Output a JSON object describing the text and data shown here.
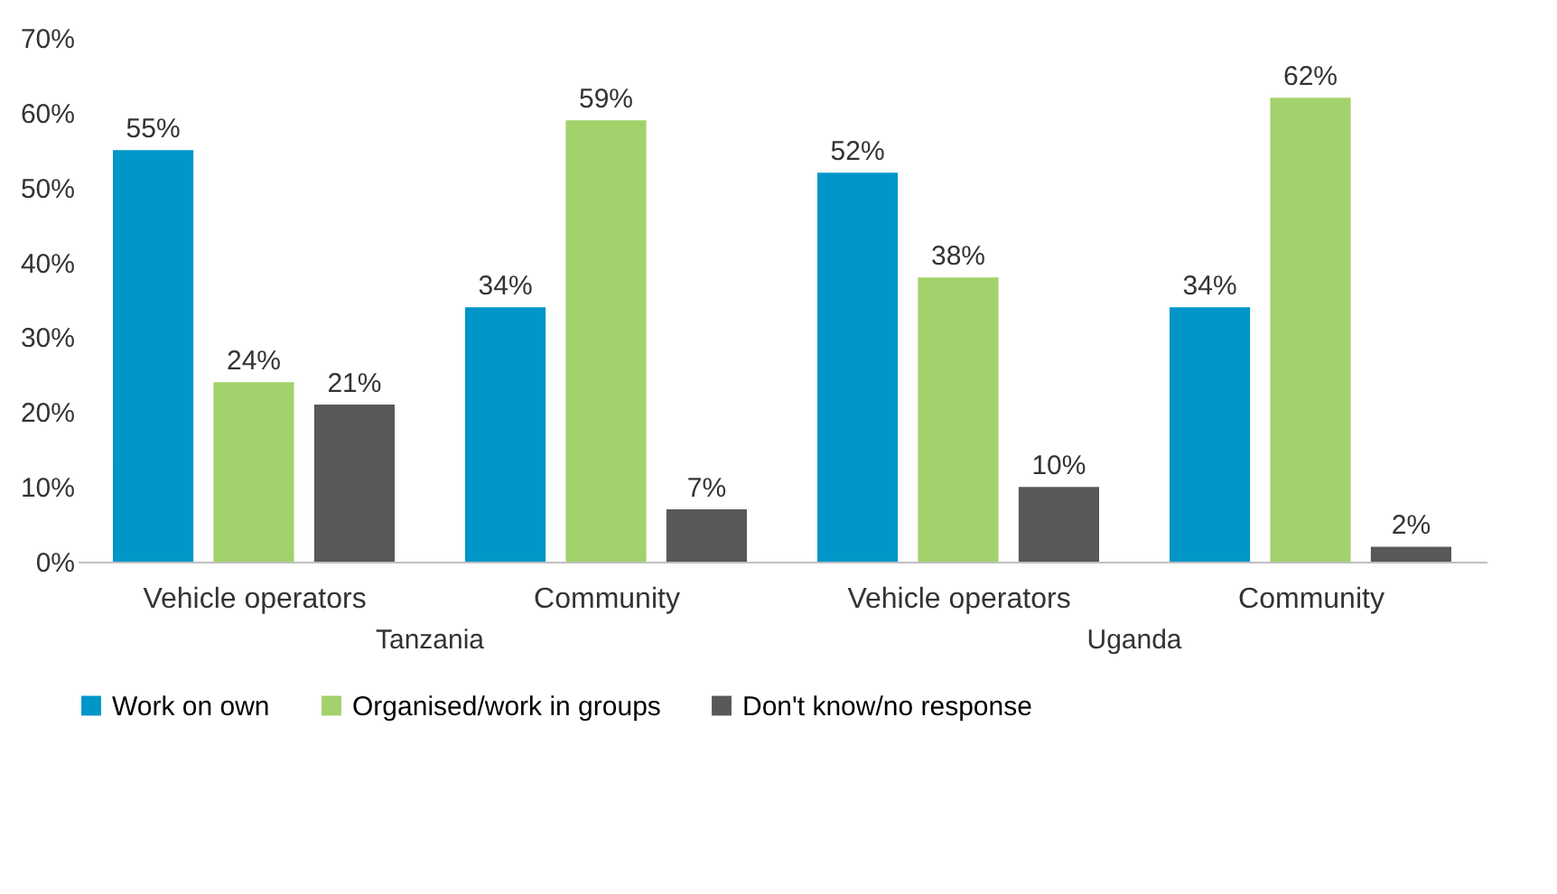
{
  "chart_data": {
    "type": "bar",
    "categories": [
      "Vehicle operators",
      "Community",
      "Vehicle operators",
      "Community"
    ],
    "series": [
      {
        "name": "Work on own",
        "color": "#0096c8",
        "values": [
          55,
          34,
          52,
          34
        ],
        "value_labels": [
          "55%",
          "34%",
          "52%",
          "34%"
        ]
      },
      {
        "name": "Organised/work in groups",
        "color": "#a3d16b",
        "values": [
          24,
          59,
          38,
          62
        ],
        "value_labels": [
          "24%",
          "59%",
          "38%",
          "62%"
        ]
      },
      {
        "name": "Don't know/no response",
        "color": "#58585a",
        "values": [
          21,
          7,
          10,
          2
        ],
        "value_labels": [
          "21%",
          "7%",
          "10%",
          "2%"
        ]
      }
    ],
    "ylim": [
      0,
      70
    ],
    "yticks": [
      {
        "value": 0,
        "label": "0%"
      },
      {
        "value": 10,
        "label": "10%"
      },
      {
        "value": 20,
        "label": "20%"
      },
      {
        "value": 30,
        "label": "30%"
      },
      {
        "value": 40,
        "label": "40%"
      },
      {
        "value": 50,
        "label": "50%"
      },
      {
        "value": 60,
        "label": "60%"
      },
      {
        "value": 70,
        "label": "70%"
      }
    ],
    "annotations": [
      "Tanzania",
      "Uganda"
    ],
    "grid": false,
    "legend": "bottom"
  }
}
